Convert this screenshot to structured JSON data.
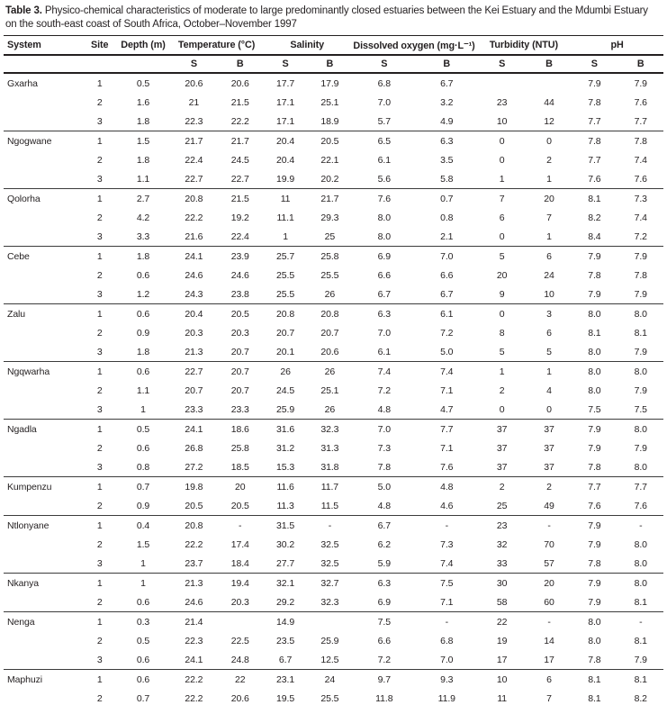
{
  "title": {
    "label": "Table 3.",
    "text": " Physico-chemical characteristics of moderate to large predominantly closed estuaries between the Kei Estuary and the Mdumbi Estuary on the south-east coast of South Africa, October–November 1997"
  },
  "table": {
    "columns": [
      "System",
      "Site",
      "Depth (m)",
      "Temperature (°C)",
      "Salinity",
      "Dissolved oxygen (mg·L⁻¹)",
      "Turbidity (NTU)",
      "pH"
    ],
    "subheaders": {
      "s": "S",
      "b": "B"
    },
    "groups": [
      {
        "system": "Gxarha",
        "rows": [
          [
            "1",
            "0.5",
            "20.6",
            "20.6",
            "17.7",
            "17.9",
            "6.8",
            "6.7",
            "",
            "",
            "7.9",
            "7.9"
          ],
          [
            "2",
            "1.6",
            "21",
            "21.5",
            "17.1",
            "25.1",
            "7.0",
            "3.2",
            "23",
            "44",
            "7.8",
            "7.6"
          ],
          [
            "3",
            "1.8",
            "22.3",
            "22.2",
            "17.1",
            "18.9",
            "5.7",
            "4.9",
            "10",
            "12",
            "7.7",
            "7.7"
          ]
        ]
      },
      {
        "system": "Ngogwane",
        "rows": [
          [
            "1",
            "1.5",
            "21.7",
            "21.7",
            "20.4",
            "20.5",
            "6.5",
            "6.3",
            "0",
            "0",
            "7.8",
            "7.8"
          ],
          [
            "2",
            "1.8",
            "22.4",
            "24.5",
            "20.4",
            "22.1",
            "6.1",
            "3.5",
            "0",
            "2",
            "7.7",
            "7.4"
          ],
          [
            "3",
            "1.1",
            "22.7",
            "22.7",
            "19.9",
            "20.2",
            "5.6",
            "5.8",
            "1",
            "1",
            "7.6",
            "7.6"
          ]
        ]
      },
      {
        "system": "Qolorha",
        "rows": [
          [
            "1",
            "2.7",
            "20.8",
            "21.5",
            "11",
            "21.7",
            "7.6",
            "0.7",
            "7",
            "20",
            "8.1",
            "7.3"
          ],
          [
            "2",
            "4.2",
            "22.2",
            "19.2",
            "11.1",
            "29.3",
            "8.0",
            "0.8",
            "6",
            "7",
            "8.2",
            "7.4"
          ],
          [
            "3",
            "3.3",
            "21.6",
            "22.4",
            "1",
            "25",
            "8.0",
            "2.1",
            "0",
            "1",
            "8.4",
            "7.2"
          ]
        ]
      },
      {
        "system": "Cebe",
        "rows": [
          [
            "1",
            "1.8",
            "24.1",
            "23.9",
            "25.7",
            "25.8",
            "6.9",
            "7.0",
            "5",
            "6",
            "7.9",
            "7.9"
          ],
          [
            "2",
            "0.6",
            "24.6",
            "24.6",
            "25.5",
            "25.5",
            "6.6",
            "6.6",
            "20",
            "24",
            "7.8",
            "7.8"
          ],
          [
            "3",
            "1.2",
            "24.3",
            "23.8",
            "25.5",
            "26",
            "6.7",
            "6.7",
            "9",
            "10",
            "7.9",
            "7.9"
          ]
        ]
      },
      {
        "system": "Zalu",
        "rows": [
          [
            "1",
            "0.6",
            "20.4",
            "20.5",
            "20.8",
            "20.8",
            "6.3",
            "6.1",
            "0",
            "3",
            "8.0",
            "8.0"
          ],
          [
            "2",
            "0.9",
            "20.3",
            "20.3",
            "20.7",
            "20.7",
            "7.0",
            "7.2",
            "8",
            "6",
            "8.1",
            "8.1"
          ],
          [
            "3",
            "1.8",
            "21.3",
            "20.7",
            "20.1",
            "20.6",
            "6.1",
            "5.0",
            "5",
            "5",
            "8.0",
            "7.9"
          ]
        ]
      },
      {
        "system": "Ngqwarha",
        "rows": [
          [
            "1",
            "0.6",
            "22.7",
            "20.7",
            "26",
            "26",
            "7.4",
            "7.4",
            "1",
            "1",
            "8.0",
            "8.0"
          ],
          [
            "2",
            "1.1",
            "20.7",
            "20.7",
            "24.5",
            "25.1",
            "7.2",
            "7.1",
            "2",
            "4",
            "8.0",
            "7.9"
          ],
          [
            "3",
            "1",
            "23.3",
            "23.3",
            "25.9",
            "26",
            "4.8",
            "4.7",
            "0",
            "0",
            "7.5",
            "7.5"
          ]
        ]
      },
      {
        "system": "Ngadla",
        "rows": [
          [
            "1",
            "0.5",
            "24.1",
            "18.6",
            "31.6",
            "32.3",
            "7.0",
            "7.7",
            "37",
            "37",
            "7.9",
            "8.0"
          ],
          [
            "2",
            "0.6",
            "26.8",
            "25.8",
            "31.2",
            "31.3",
            "7.3",
            "7.1",
            "37",
            "37",
            "7.9",
            "7.9"
          ],
          [
            "3",
            "0.8",
            "27.2",
            "18.5",
            "15.3",
            "31.8",
            "7.8",
            "7.6",
            "37",
            "37",
            "7.8",
            "8.0"
          ]
        ]
      },
      {
        "system": "Kumpenzu",
        "rows": [
          [
            "1",
            "0.7",
            "19.8",
            "20",
            "11.6",
            "11.7",
            "5.0",
            "4.8",
            "2",
            "2",
            "7.7",
            "7.7"
          ],
          [
            "2",
            "0.9",
            "20.5",
            "20.5",
            "11.3",
            "11.5",
            "4.8",
            "4.6",
            "25",
            "49",
            "7.6",
            "7.6"
          ]
        ]
      },
      {
        "system": "Ntlonyane",
        "rows": [
          [
            "1",
            "0.4",
            "20.8",
            "-",
            "31.5",
            "-",
            "6.7",
            "-",
            "23",
            "-",
            "7.9",
            "-"
          ],
          [
            "2",
            "1.5",
            "22.2",
            "17.4",
            "30.2",
            "32.5",
            "6.2",
            "7.3",
            "32",
            "70",
            "7.9",
            "8.0"
          ],
          [
            "3",
            "1",
            "23.7",
            "18.4",
            "27.7",
            "32.5",
            "5.9",
            "7.4",
            "33",
            "57",
            "7.8",
            "8.0"
          ]
        ]
      },
      {
        "system": "Nkanya",
        "rows": [
          [
            "1",
            "1",
            "21.3",
            "19.4",
            "32.1",
            "32.7",
            "6.3",
            "7.5",
            "30",
            "20",
            "7.9",
            "8.0"
          ],
          [
            "2",
            "0.6",
            "24.6",
            "20.3",
            "29.2",
            "32.3",
            "6.9",
            "7.1",
            "58",
            "60",
            "7.9",
            "8.1"
          ]
        ]
      },
      {
        "system": "Nenga",
        "rows": [
          [
            "1",
            "0.3",
            "21.4",
            "",
            "14.9",
            "",
            "7.5",
            "-",
            "22",
            "-",
            "8.0",
            "-"
          ],
          [
            "2",
            "0.5",
            "22.3",
            "22.5",
            "23.5",
            "25.9",
            "6.6",
            "6.8",
            "19",
            "14",
            "8.0",
            "8.1"
          ],
          [
            "3",
            "0.6",
            "24.1",
            "24.8",
            "6.7",
            "12.5",
            "7.2",
            "7.0",
            "17",
            "17",
            "7.8",
            "7.9"
          ]
        ]
      },
      {
        "system": "Maphuzi",
        "rows": [
          [
            "1",
            "0.6",
            "22.2",
            "22",
            "23.1",
            "24",
            "9.7",
            "9.3",
            "10",
            "6",
            "8.1",
            "8.1"
          ],
          [
            "2",
            "0.7",
            "22.2",
            "20.6",
            "19.5",
            "25.5",
            "11.8",
            "11.9",
            "11",
            "7",
            "8.1",
            "8.2"
          ]
        ]
      }
    ]
  }
}
